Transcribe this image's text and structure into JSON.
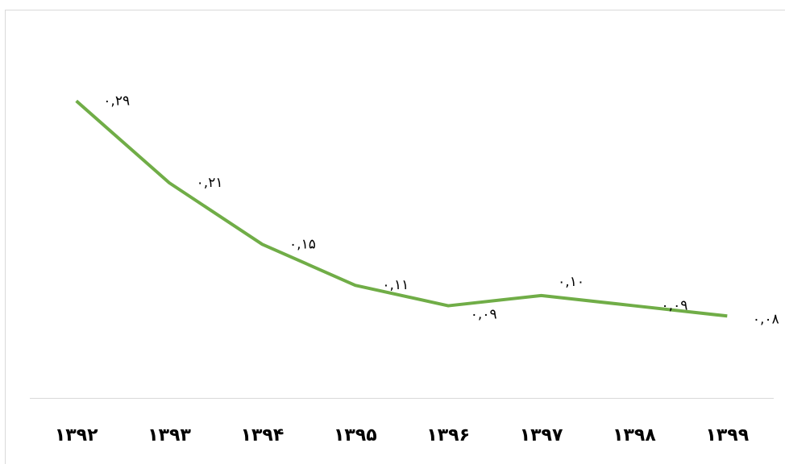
{
  "chart_data": {
    "type": "line",
    "categories": [
      "۱۳۹۲",
      "۱۳۹۳",
      "۱۳۹۴",
      "۱۳۹۵",
      "۱۳۹۶",
      "۱۳۹۷",
      "۱۳۹۸",
      "۱۳۹۹"
    ],
    "values": [
      0.29,
      0.21,
      0.15,
      0.11,
      0.09,
      0.1,
      0.09,
      0.08
    ],
    "value_labels": [
      "۰,۲۹",
      "۰,۲۱",
      "۰,۱۵",
      "۰,۱۱",
      "۰,۰۹",
      "۰,۱۰",
      "۰,۰۹",
      "۰,۰۸"
    ],
    "color": "#70ad47",
    "ylim": [
      0,
      0.35
    ]
  }
}
